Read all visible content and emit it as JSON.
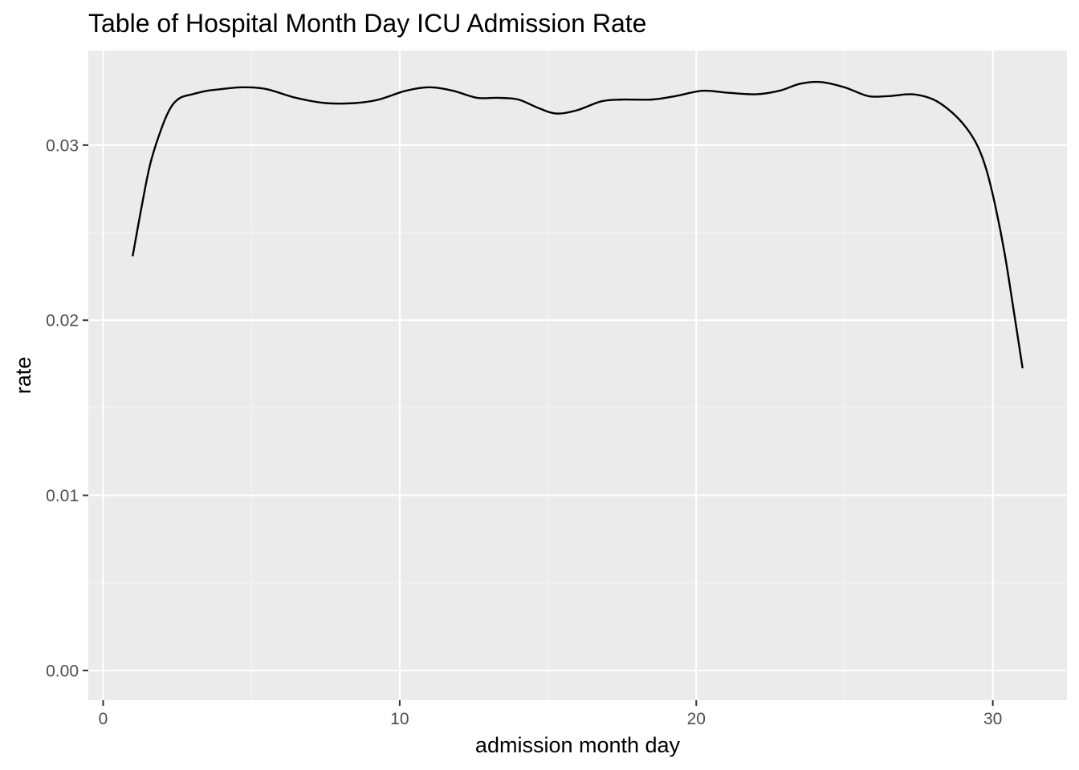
{
  "chart_data": {
    "type": "line",
    "title": "Table of Hospital Month Day ICU Admission Rate",
    "xlabel": "admission month day",
    "ylabel": "rate",
    "xlim": [
      -0.5,
      32.5
    ],
    "ylim": [
      -0.0017,
      0.0354
    ],
    "x_ticks": [
      {
        "value": 0,
        "label": "0"
      },
      {
        "value": 10,
        "label": "10"
      },
      {
        "value": 20,
        "label": "20"
      },
      {
        "value": 30,
        "label": "30"
      }
    ],
    "x_minor_ticks": [
      5,
      15,
      25
    ],
    "y_ticks": [
      {
        "value": 0.0,
        "label": "0.00"
      },
      {
        "value": 0.01,
        "label": "0.01"
      },
      {
        "value": 0.02,
        "label": "0.02"
      },
      {
        "value": 0.03,
        "label": "0.03"
      }
    ],
    "y_minor_ticks": [
      0.005,
      0.015,
      0.025
    ],
    "grid": true,
    "colors": {
      "panel_background": "#ebebeb",
      "grid_major": "#ffffff",
      "grid_minor": "#f5f5f5",
      "line": "#000000",
      "tick": "#333333"
    },
    "series": [
      {
        "x": [
          1,
          1.3,
          1.6,
          2.0,
          2.3,
          2.6,
          3.0,
          3.5,
          4.0,
          4.7,
          5.5,
          6.5,
          7.5,
          8.5,
          9.3,
          10.2,
          11.0,
          11.8,
          12.6,
          13.3,
          14.0,
          14.7,
          15.3,
          16.0,
          16.8,
          17.5,
          18.5,
          19.3,
          20.2,
          21.0,
          22.0,
          22.8,
          23.5,
          24.2,
          25.0,
          25.8,
          26.5,
          27.3,
          28.0,
          28.6,
          29.1,
          29.5,
          29.8,
          30.1,
          30.4,
          30.7,
          31.0
        ],
        "y": [
          0.0237,
          0.0265,
          0.029,
          0.0311,
          0.0322,
          0.0327,
          0.0329,
          0.0331,
          0.0332,
          0.0333,
          0.0332,
          0.0327,
          0.0324,
          0.0324,
          0.0326,
          0.0331,
          0.0333,
          0.0331,
          0.0327,
          0.0327,
          0.0326,
          0.0321,
          0.0318,
          0.032,
          0.0325,
          0.0326,
          0.0326,
          0.0328,
          0.0331,
          0.033,
          0.0329,
          0.0331,
          0.0335,
          0.0336,
          0.0333,
          0.0328,
          0.0328,
          0.0329,
          0.0326,
          0.0319,
          0.031,
          0.0299,
          0.0285,
          0.0264,
          0.0238,
          0.0206,
          0.0173
        ]
      }
    ]
  }
}
